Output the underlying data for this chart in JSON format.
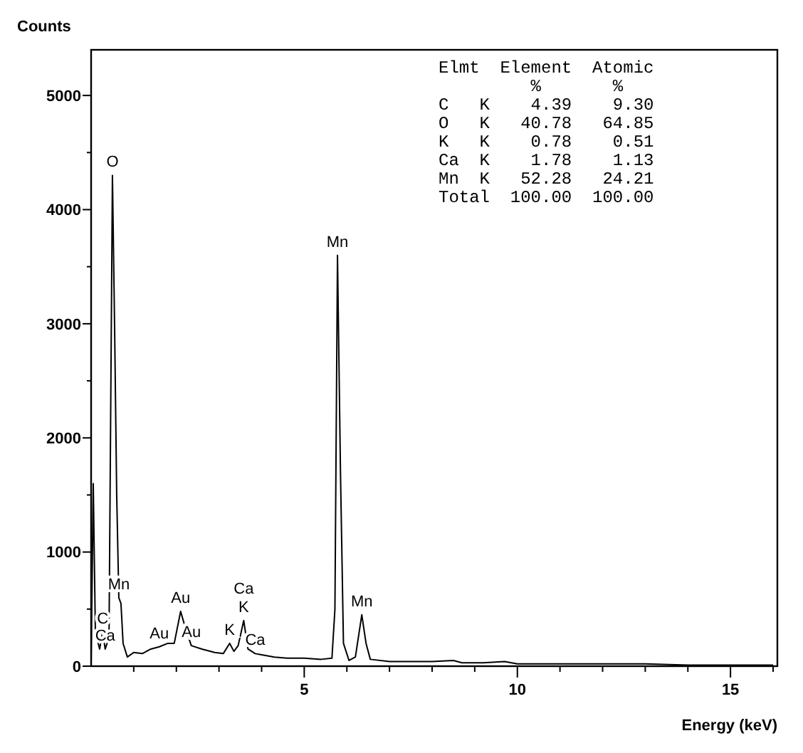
{
  "chart_data": {
    "type": "line",
    "xlabel": "Energy (keV)",
    "ylabel": "Counts",
    "xlim": [
      0,
      16.1
    ],
    "ylim": [
      0,
      5400
    ],
    "xticks": [
      {
        "value": 1,
        "label": null
      },
      {
        "value": 2,
        "label": null
      },
      {
        "value": 3,
        "label": null
      },
      {
        "value": 4,
        "label": null
      },
      5,
      {
        "value": 6,
        "label": null
      },
      {
        "value": 7,
        "label": null
      },
      {
        "value": 8,
        "label": null
      },
      {
        "value": 9,
        "label": null
      },
      10,
      {
        "value": 11,
        "label": null
      },
      {
        "value": 12,
        "label": null
      },
      {
        "value": 13,
        "label": null
      },
      {
        "value": 14,
        "label": null
      },
      15,
      {
        "value": 16,
        "label": null
      }
    ],
    "yticks": [
      0,
      {
        "value": 500,
        "label": null
      },
      1000,
      {
        "value": 1500,
        "label": null
      },
      2000,
      {
        "value": 2500,
        "label": null
      },
      3000,
      {
        "value": 3500,
        "label": null
      },
      4000,
      {
        "value": 4500,
        "label": null
      },
      5000
    ],
    "grid": false,
    "marker": "none",
    "line_style": "solid",
    "series": [
      {
        "color": "#000000",
        "x": [
          0,
          0.05,
          0.1,
          0.2,
          0.27,
          0.33,
          0.42,
          0.5,
          0.55,
          0.6,
          0.65,
          0.7,
          0.75,
          0.85,
          1.0,
          1.2,
          1.4,
          1.6,
          1.8,
          1.95,
          2.1,
          2.2,
          2.35,
          2.6,
          2.9,
          3.1,
          3.25,
          3.35,
          3.45,
          3.58,
          3.68,
          3.85,
          4.0,
          4.3,
          4.6,
          5.0,
          5.4,
          5.65,
          5.72,
          5.78,
          5.85,
          5.92,
          6.05,
          6.2,
          6.35,
          6.45,
          6.55,
          7.0,
          7.5,
          8.0,
          8.5,
          8.7,
          9.2,
          9.7,
          10.0,
          11.0,
          11.5,
          12.0,
          13.0,
          14.0,
          15.0,
          16.0
        ],
        "values": [
          0,
          1600,
          300,
          150,
          300,
          150,
          250,
          4300,
          3000,
          1500,
          600,
          550,
          200,
          80,
          120,
          110,
          150,
          170,
          200,
          200,
          480,
          350,
          180,
          150,
          120,
          110,
          200,
          130,
          180,
          400,
          150,
          110,
          100,
          80,
          70,
          70,
          60,
          70,
          500,
          3600,
          1700,
          200,
          50,
          80,
          450,
          200,
          60,
          40,
          40,
          40,
          50,
          30,
          30,
          40,
          20,
          20,
          20,
          20,
          20,
          10,
          10,
          10
        ]
      }
    ],
    "annotations": [
      {
        "text": "O",
        "x": 0.5,
        "y": 4300
      },
      {
        "text": "Mn",
        "x": 5.78,
        "y": 3600
      },
      {
        "text": "Mn",
        "x": 0.65,
        "y": 600
      },
      {
        "text": "C",
        "x": 0.27,
        "y": 300
      },
      {
        "text": "Ca",
        "x": 0.33,
        "y": 150
      },
      {
        "text": "Au",
        "x": 2.1,
        "y": 480
      },
      {
        "text": "Au",
        "x": 1.6,
        "y": 170
      },
      {
        "text": "Au",
        "x": 2.35,
        "y": 180
      },
      {
        "text": "K",
        "x": 3.25,
        "y": 200
      },
      {
        "text": "K",
        "x": 3.58,
        "y": 400
      },
      {
        "text": "Ca",
        "x": 3.58,
        "y": 400
      },
      {
        "text": "Ca",
        "x": 3.85,
        "y": 110
      },
      {
        "text": "Mn",
        "x": 6.35,
        "y": 450
      },
      "Elmt  Element  Atomic",
      "         %       %",
      "C   K    4.39    9.30",
      "O   K   40.78   64.85",
      "K   K    0.78    0.51",
      "Ca  K    1.78    1.13",
      "Mn  K   52.28   24.21",
      "Total  100.00  100.00"
    ]
  }
}
